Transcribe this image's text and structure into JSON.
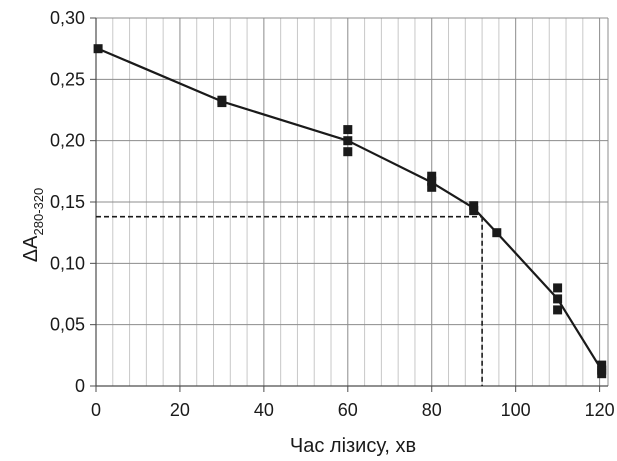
{
  "chart_data": {
    "type": "scatter",
    "xlabel": "Час лізису, хв",
    "ylabel": {
      "main": "ΔA",
      "subscript": "280-320"
    },
    "xlim": [
      0,
      122
    ],
    "ylim": [
      0,
      0.3
    ],
    "x_ticks": [
      0,
      20,
      40,
      60,
      80,
      100,
      120
    ],
    "y_ticks": [
      0,
      0.05,
      0.1,
      0.15,
      0.2,
      0.25,
      0.3
    ],
    "x_tick_labels": [
      "0",
      "20",
      "40",
      "60",
      "80",
      "100",
      "120"
    ],
    "y_tick_labels": [
      "0",
      "0,05",
      "0,10",
      "0,15",
      "0,20",
      "0,25",
      "0,30"
    ],
    "x_minor_step": 4,
    "grid": true,
    "series": [
      {
        "marker": "square",
        "points": [
          [
            0.5,
            0.275
          ],
          [
            30,
            0.233
          ],
          [
            30,
            0.231
          ],
          [
            60,
            0.209
          ],
          [
            60,
            0.2
          ],
          [
            60,
            0.191
          ],
          [
            80,
            0.171
          ],
          [
            80,
            0.167
          ],
          [
            80,
            0.162
          ],
          [
            90,
            0.147
          ],
          [
            90,
            0.143
          ],
          [
            95.5,
            0.125
          ],
          [
            110,
            0.08
          ],
          [
            110,
            0.071
          ],
          [
            110,
            0.062
          ],
          [
            120.5,
            0.017
          ],
          [
            120.5,
            0.013
          ],
          [
            120.5,
            0.01
          ]
        ]
      }
    ],
    "trend_line": [
      [
        0.5,
        0.275
      ],
      [
        30,
        0.232
      ],
      [
        60,
        0.2
      ],
      [
        80,
        0.166
      ],
      [
        90,
        0.145
      ],
      [
        95.5,
        0.125
      ],
      [
        110,
        0.071
      ],
      [
        120.5,
        0.013
      ]
    ],
    "reference_lines": {
      "x": 92,
      "y": 0.138,
      "style": "dashed"
    },
    "colors": {
      "marker": "#1a1a1a",
      "line": "#1a1a1a",
      "major_grid": "#8c8c8c",
      "minor_grid": "#c8c8c8",
      "axis": "#4d4d4d"
    }
  }
}
